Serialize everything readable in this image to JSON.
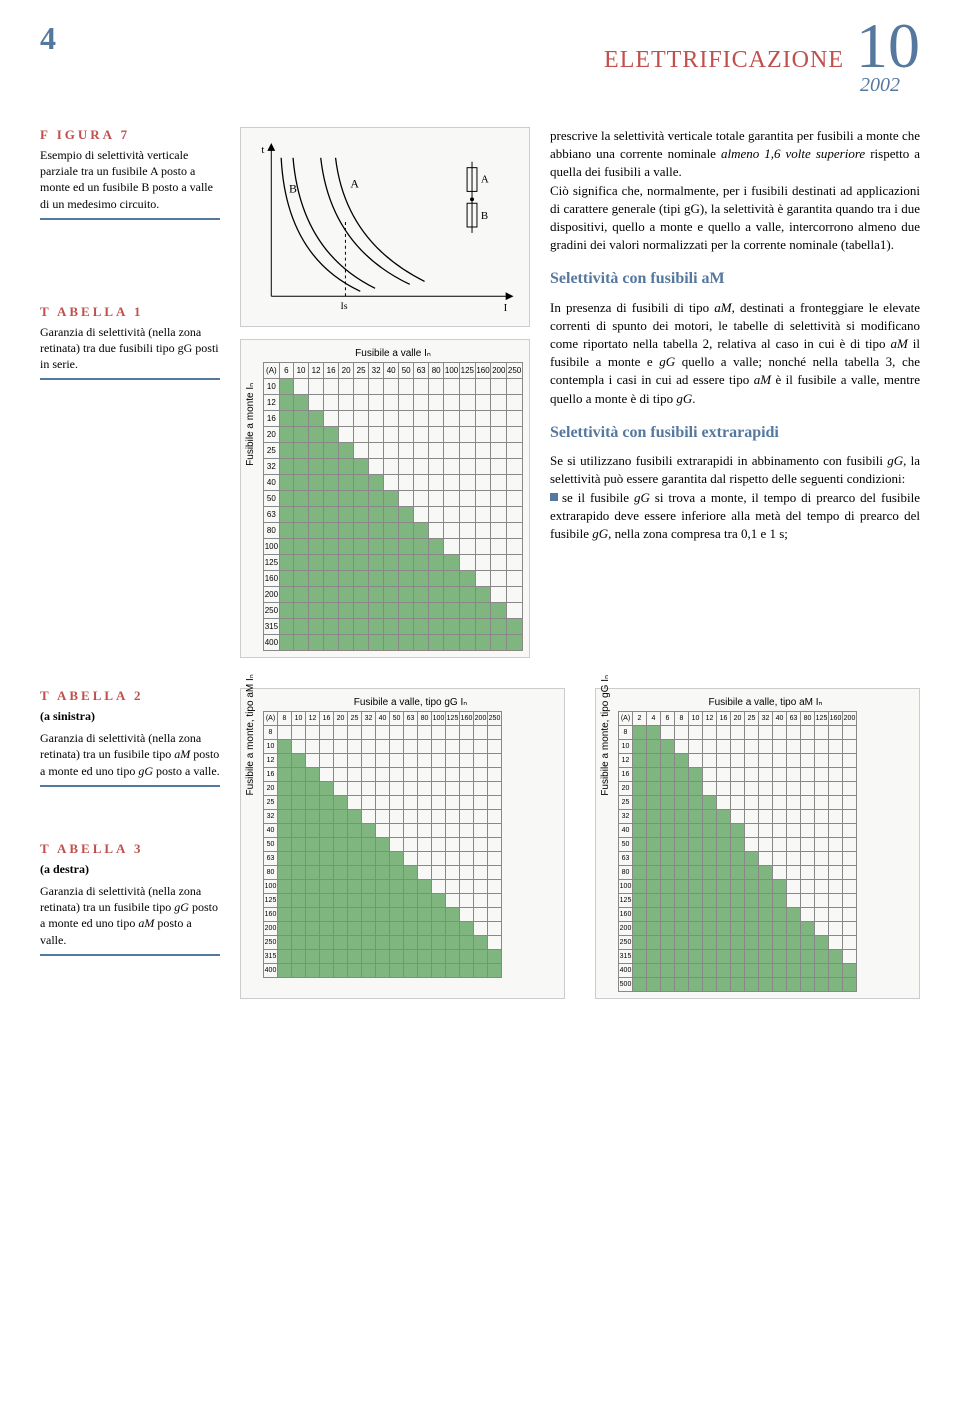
{
  "header": {
    "page_num": "4",
    "title_word": "ELETTRIFICAZIONE",
    "title_num": "10",
    "year": "2002"
  },
  "fig7": {
    "title": "F IGURA  7",
    "caption": "Esempio di selettività verticale parziale tra un fusibile A posto a monte ed un fusibile B posto a valle di un medesimo circuito.",
    "labels": {
      "t": "t",
      "A": "A",
      "B": "B",
      "Is": "Is",
      "I": "I"
    }
  },
  "tab1": {
    "title": "T ABELLA  1",
    "caption": "Garanzia di selettività (nella zona retinata) tra due fusibili tipo gG posti in serie.",
    "xlab": "Fusibile a valle   Iₙ",
    "ylab": "Fusibile a monte   Iₙ",
    "corner": "(A)",
    "cols": [
      "6",
      "10",
      "12",
      "16",
      "20",
      "25",
      "32",
      "40",
      "50",
      "63",
      "80",
      "100",
      "125",
      "160",
      "200",
      "250"
    ],
    "rows": [
      "10",
      "12",
      "16",
      "20",
      "25",
      "32",
      "40",
      "50",
      "63",
      "80",
      "100",
      "125",
      "160",
      "200",
      "250",
      "315",
      "400"
    ],
    "start": [
      1,
      2,
      3,
      4,
      5,
      6,
      7,
      8,
      9,
      10,
      11,
      12,
      13,
      14,
      15,
      16,
      16
    ]
  },
  "body": {
    "p1": "prescrive la selettività verticale totale garantita per fusibili a monte che abbiano una corrente nominale almeno 1,6 volte superiore rispetto a quella dei fusibili a valle.",
    "p2": "Ciò significa che, normalmente, per i fusibili destinati ad applicazioni di carattere generale (tipi gG), la selettività è garantita quando tra i due dispositivi, quello a monte e quello a valle, intercorrono almeno due gradini dei valori normalizzati per la corrente nominale (tabella1).",
    "h1": "Selettività con fusibili aM",
    "p3": "In presenza di fusibili di tipo aM, destinati a fronteggiare le elevate correnti di spunto dei motori, le tabelle di selettività si modificano come riportato nella tabella 2, relativa al caso in cui è di tipo aM il fusibile a monte e gG quello a valle; nonché nella tabella 3, che contempla i casi in cui ad essere tipo aM è il fusibile a valle, mentre quello a monte è di tipo gG.",
    "h2": "Selettività con fusibili extrarapidi",
    "p4": "Se si utilizzano fusibili extrarapidi in abbinamento con fusibili gG, la selettività può essere garantita dal rispetto delle seguenti condizioni:",
    "p5": "se il fusibile gG si trova a monte, il tempo di prearco del fusibile extrarapido deve essere inferiore alla metà del tempo di prearco del fusibile gG, nella zona compresa tra 0,1 e 1 s;"
  },
  "tab2": {
    "title": "T ABELLA  2",
    "subtitle": "(a sinistra)",
    "caption": "Garanzia di selettività (nella zona retinata) tra un fusibile tipo aM posto a monte ed uno tipo gG posto a valle.",
    "xlab": "Fusibile a valle, tipo gG   Iₙ",
    "ylab": "Fusibile a monte, tipo aM   Iₙ",
    "corner": "(A)",
    "cols": [
      "8",
      "10",
      "12",
      "16",
      "20",
      "25",
      "32",
      "40",
      "50",
      "63",
      "80",
      "100",
      "125",
      "160",
      "200",
      "250"
    ],
    "rows": [
      "8",
      "10",
      "12",
      "16",
      "20",
      "25",
      "32",
      "40",
      "50",
      "63",
      "80",
      "100",
      "125",
      "160",
      "200",
      "250",
      "315",
      "400"
    ],
    "start": [
      0,
      1,
      2,
      3,
      4,
      5,
      6,
      7,
      8,
      9,
      10,
      11,
      12,
      13,
      14,
      15,
      16,
      16
    ]
  },
  "tab3": {
    "title": "T ABELLA  3",
    "subtitle": "(a destra)",
    "caption": "Garanzia di selettività (nella zona retinata) tra un fusibile tipo gG posto a monte ed uno tipo aM posto a valle.",
    "xlab": "Fusibile a valle, tipo aM   Iₙ",
    "ylab": "Fusibile a monte, tipo gG   Iₙ",
    "corner": "(A)",
    "cols": [
      "2",
      "4",
      "6",
      "8",
      "10",
      "12",
      "16",
      "20",
      "25",
      "32",
      "40",
      "63",
      "80",
      "125",
      "160",
      "200"
    ],
    "rows": [
      "8",
      "10",
      "12",
      "16",
      "20",
      "25",
      "32",
      "40",
      "50",
      "63",
      "80",
      "100",
      "125",
      "160",
      "200",
      "250",
      "315",
      "400",
      "500"
    ],
    "start": [
      2,
      3,
      4,
      5,
      5,
      6,
      7,
      8,
      8,
      9,
      10,
      11,
      11,
      12,
      13,
      14,
      15,
      16,
      16
    ]
  },
  "colors": {
    "green": "#7fb57f",
    "border": "#888",
    "red": "#c0504d",
    "blue": "#55789e",
    "box_bg": "#f8f8f6"
  }
}
